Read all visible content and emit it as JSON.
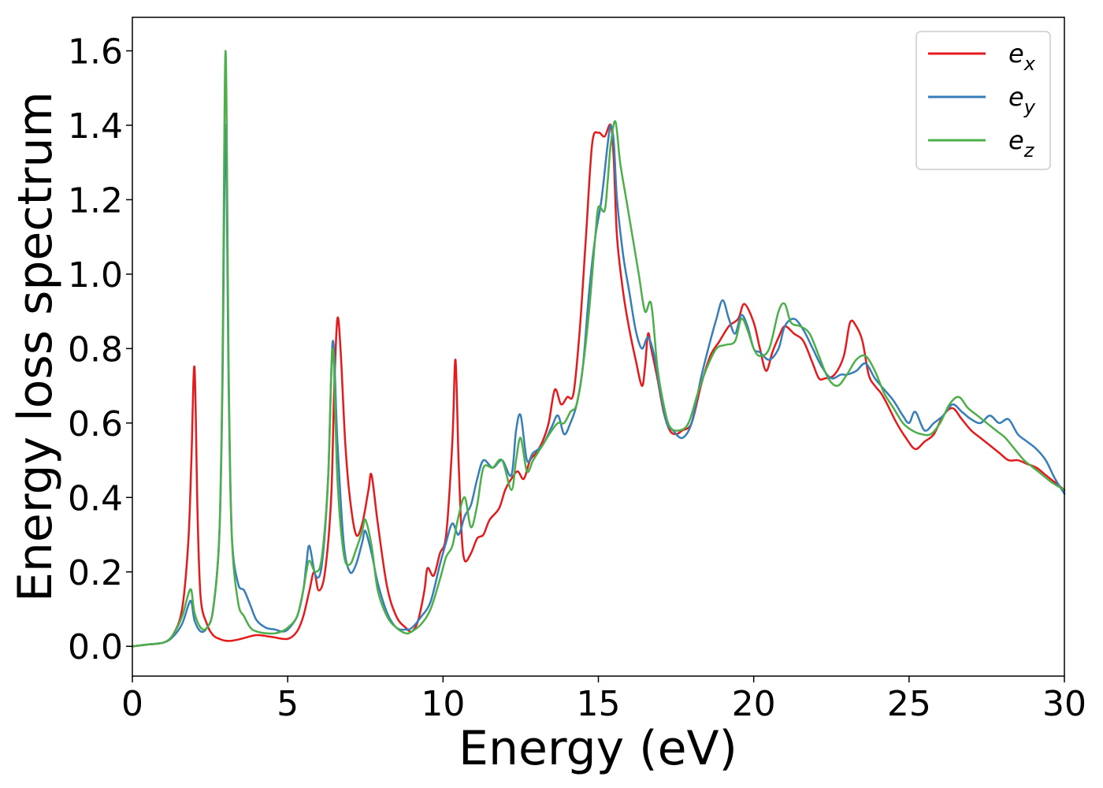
{
  "chart_data": {
    "type": "line",
    "xlabel": "Energy (eV)",
    "ylabel": "Energy loss spectrum",
    "xlim": [
      0,
      30
    ],
    "ylim": [
      -0.08,
      1.69
    ],
    "xticks": [
      0,
      5,
      10,
      15,
      20,
      25,
      30
    ],
    "xtick_labels": [
      "0",
      "5",
      "10",
      "15",
      "20",
      "25",
      "30"
    ],
    "yticks": [
      0.0,
      0.2,
      0.4,
      0.6,
      0.8,
      1.0,
      1.2,
      1.4,
      1.6
    ],
    "ytick_labels": [
      "0.0",
      "0.2",
      "0.4",
      "0.6",
      "0.8",
      "1.0",
      "1.2",
      "1.4",
      "1.6"
    ],
    "grid": false,
    "legend_position": "top-right",
    "series": [
      {
        "name": "e",
        "subscript": "x",
        "color": "#e41a1c",
        "x": [
          0,
          0.5,
          1.0,
          1.3,
          1.6,
          1.8,
          1.9,
          2.0,
          2.1,
          2.2,
          2.4,
          2.6,
          2.8,
          3.0,
          3.2,
          3.5,
          4.0,
          4.5,
          5.0,
          5.3,
          5.5,
          5.7,
          5.85,
          6.0,
          6.2,
          6.4,
          6.5,
          6.6,
          6.7,
          6.85,
          7.0,
          7.2,
          7.4,
          7.6,
          7.7,
          7.9,
          8.2,
          8.5,
          8.8,
          9.0,
          9.2,
          9.4,
          9.5,
          9.7,
          9.9,
          10.1,
          10.3,
          10.4,
          10.5,
          10.6,
          10.7,
          10.9,
          11.1,
          11.3,
          11.5,
          11.8,
          12.0,
          12.2,
          12.4,
          12.6,
          12.8,
          13.0,
          13.2,
          13.4,
          13.6,
          13.8,
          14.0,
          14.2,
          14.4,
          14.6,
          14.8,
          15.0,
          15.2,
          15.4,
          15.5,
          15.6,
          15.8,
          16.0,
          16.2,
          16.4,
          16.5,
          16.6,
          16.7,
          16.9,
          17.1,
          17.3,
          17.5,
          17.7,
          18.0,
          18.3,
          18.6,
          18.9,
          19.2,
          19.5,
          19.7,
          20.0,
          20.2,
          20.4,
          20.6,
          20.8,
          21.0,
          21.3,
          21.6,
          21.9,
          22.1,
          22.3,
          22.6,
          22.9,
          23.1,
          23.3,
          23.5,
          23.7,
          23.9,
          24.1,
          24.3,
          24.6,
          24.9,
          25.2,
          25.5,
          25.8,
          26.1,
          26.4,
          26.7,
          27.0,
          27.3,
          27.6,
          27.9,
          28.2,
          28.5,
          28.8,
          29.1,
          29.4,
          29.7,
          30.0
        ],
        "y": [
          0.0,
          0.005,
          0.01,
          0.03,
          0.1,
          0.28,
          0.5,
          0.75,
          0.35,
          0.13,
          0.06,
          0.03,
          0.02,
          0.015,
          0.015,
          0.02,
          0.03,
          0.025,
          0.02,
          0.04,
          0.08,
          0.15,
          0.2,
          0.15,
          0.2,
          0.4,
          0.7,
          0.88,
          0.8,
          0.55,
          0.4,
          0.3,
          0.33,
          0.42,
          0.46,
          0.33,
          0.16,
          0.08,
          0.05,
          0.04,
          0.07,
          0.15,
          0.21,
          0.19,
          0.25,
          0.3,
          0.55,
          0.77,
          0.5,
          0.3,
          0.23,
          0.25,
          0.29,
          0.3,
          0.34,
          0.37,
          0.42,
          0.45,
          0.47,
          0.45,
          0.5,
          0.52,
          0.55,
          0.6,
          0.69,
          0.65,
          0.67,
          0.68,
          0.85,
          1.1,
          1.35,
          1.38,
          1.37,
          1.4,
          1.3,
          1.1,
          0.95,
          0.85,
          0.77,
          0.7,
          0.75,
          0.84,
          0.8,
          0.72,
          0.63,
          0.58,
          0.57,
          0.58,
          0.6,
          0.7,
          0.78,
          0.82,
          0.86,
          0.88,
          0.92,
          0.87,
          0.8,
          0.74,
          0.79,
          0.83,
          0.86,
          0.84,
          0.82,
          0.76,
          0.72,
          0.72,
          0.73,
          0.78,
          0.87,
          0.86,
          0.82,
          0.73,
          0.7,
          0.68,
          0.65,
          0.6,
          0.56,
          0.53,
          0.55,
          0.57,
          0.62,
          0.64,
          0.61,
          0.58,
          0.56,
          0.54,
          0.52,
          0.5,
          0.5,
          0.49,
          0.48,
          0.46,
          0.44,
          0.42
        ]
      },
      {
        "name": "e",
        "subscript": "y",
        "color": "#377eb8",
        "x": [
          0,
          0.5,
          1.0,
          1.3,
          1.6,
          1.8,
          1.9,
          2.0,
          2.2,
          2.4,
          2.6,
          2.8,
          2.9,
          3.0,
          3.1,
          3.2,
          3.4,
          3.6,
          3.8,
          4.0,
          4.3,
          4.6,
          4.8,
          5.0,
          5.3,
          5.5,
          5.6,
          5.7,
          5.9,
          6.1,
          6.3,
          6.45,
          6.6,
          6.8,
          7.0,
          7.2,
          7.4,
          7.5,
          7.7,
          7.9,
          8.2,
          8.5,
          8.8,
          9.0,
          9.3,
          9.6,
          9.9,
          10.1,
          10.3,
          10.5,
          10.7,
          10.9,
          11.1,
          11.3,
          11.6,
          11.9,
          12.2,
          12.35,
          12.5,
          12.7,
          12.9,
          13.2,
          13.5,
          13.7,
          13.9,
          14.1,
          14.3,
          14.5,
          14.7,
          14.9,
          15.1,
          15.3,
          15.4,
          15.5,
          15.6,
          15.8,
          16.0,
          16.2,
          16.4,
          16.6,
          16.8,
          17.0,
          17.2,
          17.4,
          17.7,
          18.0,
          18.3,
          18.6,
          18.8,
          19.0,
          19.2,
          19.4,
          19.6,
          19.8,
          20.0,
          20.2,
          20.5,
          20.8,
          21.0,
          21.3,
          21.6,
          21.9,
          22.2,
          22.5,
          22.8,
          23.0,
          23.3,
          23.6,
          23.9,
          24.2,
          24.5,
          24.8,
          25.0,
          25.2,
          25.5,
          25.8,
          26.1,
          26.4,
          26.7,
          27.0,
          27.3,
          27.6,
          27.9,
          28.2,
          28.5,
          28.8,
          29.1,
          29.4,
          29.7,
          30.0
        ],
        "y": [
          0.0,
          0.005,
          0.01,
          0.025,
          0.06,
          0.11,
          0.12,
          0.07,
          0.04,
          0.05,
          0.1,
          0.3,
          0.7,
          1.4,
          0.7,
          0.3,
          0.17,
          0.15,
          0.11,
          0.07,
          0.05,
          0.045,
          0.04,
          0.045,
          0.08,
          0.15,
          0.22,
          0.27,
          0.19,
          0.22,
          0.45,
          0.82,
          0.55,
          0.28,
          0.2,
          0.22,
          0.28,
          0.31,
          0.25,
          0.17,
          0.09,
          0.05,
          0.045,
          0.05,
          0.08,
          0.12,
          0.22,
          0.28,
          0.33,
          0.3,
          0.35,
          0.38,
          0.45,
          0.5,
          0.48,
          0.5,
          0.46,
          0.58,
          0.62,
          0.5,
          0.52,
          0.54,
          0.59,
          0.62,
          0.57,
          0.6,
          0.65,
          0.75,
          0.95,
          1.1,
          1.2,
          1.35,
          1.4,
          1.35,
          1.2,
          1.05,
          0.95,
          0.85,
          0.8,
          0.83,
          0.78,
          0.68,
          0.6,
          0.58,
          0.56,
          0.6,
          0.72,
          0.82,
          0.88,
          0.93,
          0.88,
          0.84,
          0.89,
          0.86,
          0.8,
          0.79,
          0.77,
          0.8,
          0.86,
          0.88,
          0.85,
          0.8,
          0.75,
          0.72,
          0.73,
          0.73,
          0.74,
          0.76,
          0.72,
          0.69,
          0.66,
          0.62,
          0.6,
          0.63,
          0.58,
          0.6,
          0.62,
          0.65,
          0.63,
          0.61,
          0.6,
          0.62,
          0.6,
          0.61,
          0.57,
          0.55,
          0.53,
          0.5,
          0.45,
          0.41
        ]
      },
      {
        "name": "e",
        "subscript": "z",
        "color": "#4daf4a",
        "x": [
          0,
          0.5,
          1.0,
          1.3,
          1.6,
          1.8,
          1.9,
          2.0,
          2.2,
          2.4,
          2.6,
          2.8,
          2.9,
          3.0,
          3.1,
          3.2,
          3.4,
          3.6,
          3.8,
          4.0,
          4.3,
          4.6,
          4.8,
          5.0,
          5.3,
          5.5,
          5.6,
          5.7,
          5.9,
          6.1,
          6.3,
          6.45,
          6.6,
          6.8,
          7.0,
          7.2,
          7.4,
          7.5,
          7.7,
          7.9,
          8.2,
          8.5,
          8.8,
          9.0,
          9.3,
          9.6,
          9.9,
          10.1,
          10.3,
          10.5,
          10.7,
          10.9,
          11.1,
          11.3,
          11.6,
          11.9,
          12.2,
          12.35,
          12.5,
          12.7,
          12.9,
          13.2,
          13.5,
          13.7,
          13.9,
          14.1,
          14.3,
          14.5,
          14.7,
          14.9,
          15.0,
          15.2,
          15.3,
          15.4,
          15.55,
          15.7,
          15.9,
          16.1,
          16.3,
          16.5,
          16.7,
          16.9,
          17.1,
          17.3,
          17.6,
          17.9,
          18.2,
          18.5,
          18.8,
          19.1,
          19.4,
          19.6,
          19.8,
          20.0,
          20.2,
          20.5,
          20.8,
          21.0,
          21.2,
          21.5,
          21.8,
          22.1,
          22.4,
          22.7,
          23.0,
          23.3,
          23.6,
          23.9,
          24.2,
          24.5,
          24.8,
          25.1,
          25.4,
          25.7,
          26.0,
          26.3,
          26.6,
          26.9,
          27.2,
          27.5,
          27.8,
          28.1,
          28.4,
          28.7,
          29.0,
          29.3,
          29.6,
          30.0
        ],
        "y": [
          0.0,
          0.005,
          0.01,
          0.03,
          0.08,
          0.14,
          0.15,
          0.09,
          0.05,
          0.05,
          0.1,
          0.3,
          0.75,
          1.6,
          0.75,
          0.3,
          0.12,
          0.08,
          0.05,
          0.04,
          0.035,
          0.035,
          0.04,
          0.05,
          0.08,
          0.15,
          0.2,
          0.23,
          0.2,
          0.24,
          0.45,
          0.8,
          0.45,
          0.25,
          0.22,
          0.26,
          0.31,
          0.34,
          0.27,
          0.15,
          0.08,
          0.05,
          0.035,
          0.04,
          0.06,
          0.1,
          0.18,
          0.24,
          0.27,
          0.35,
          0.4,
          0.32,
          0.38,
          0.48,
          0.48,
          0.5,
          0.42,
          0.5,
          0.56,
          0.47,
          0.5,
          0.54,
          0.58,
          0.6,
          0.6,
          0.63,
          0.65,
          0.75,
          0.9,
          1.1,
          1.18,
          1.17,
          1.25,
          1.35,
          1.41,
          1.3,
          1.2,
          1.1,
          1.0,
          0.9,
          0.92,
          0.75,
          0.65,
          0.59,
          0.58,
          0.6,
          0.68,
          0.75,
          0.8,
          0.81,
          0.82,
          0.88,
          0.85,
          0.8,
          0.78,
          0.8,
          0.9,
          0.92,
          0.87,
          0.86,
          0.84,
          0.78,
          0.72,
          0.7,
          0.73,
          0.77,
          0.78,
          0.74,
          0.68,
          0.64,
          0.6,
          0.58,
          0.57,
          0.57,
          0.6,
          0.65,
          0.67,
          0.64,
          0.62,
          0.6,
          0.58,
          0.56,
          0.53,
          0.5,
          0.48,
          0.46,
          0.44,
          0.42
        ]
      }
    ]
  }
}
